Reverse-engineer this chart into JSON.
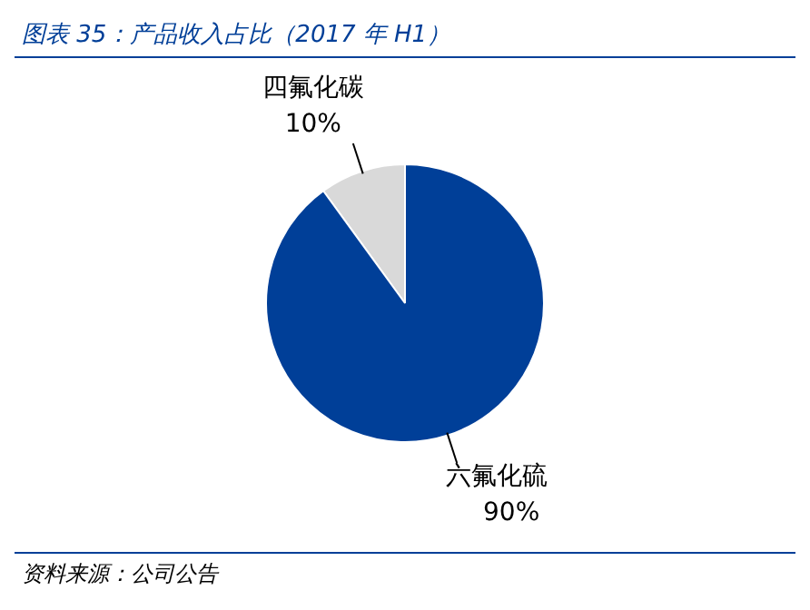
{
  "chart_data": {
    "type": "pie",
    "title": "图表 35：产品收入占比（2017 年 H1）",
    "categories": [
      "四氟化碳",
      "六氟化硫"
    ],
    "values": [
      10,
      90
    ],
    "colors": [
      "#d9d9d9",
      "#003f98"
    ],
    "value_labels": [
      "10%",
      "90%"
    ],
    "legend": false,
    "annotations": [
      "资料来源：公司公告"
    ]
  }
}
